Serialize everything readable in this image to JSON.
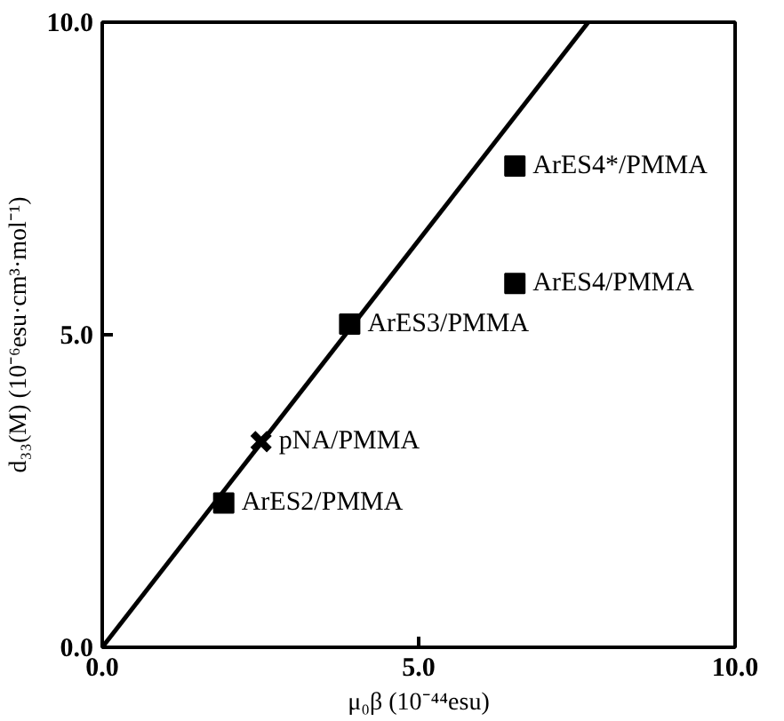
{
  "chart_data": {
    "type": "scatter",
    "xlabel": "μ₀β (10⁻⁴⁴esu)",
    "ylabel": "d₃₃(M) (10⁻⁶esu·cm³·mol⁻¹)",
    "xlim": [
      0,
      10
    ],
    "ylim": [
      0,
      10
    ],
    "xticks": [
      {
        "value": 0,
        "label": "0.0"
      },
      {
        "value": 5,
        "label": "5.0"
      },
      {
        "value": 10,
        "label": "10.0"
      }
    ],
    "yticks": [
      {
        "value": 0,
        "label": "0.0"
      },
      {
        "value": 5,
        "label": "5.0"
      },
      {
        "value": 10,
        "label": "10.0"
      }
    ],
    "grid": false,
    "series": [
      {
        "marker": "square",
        "color": "#000000",
        "x": [
          1.92,
          3.91,
          6.52,
          6.52
        ],
        "values": [
          2.31,
          5.17,
          7.7,
          5.82
        ]
      },
      {
        "marker": "cross",
        "color": "#000000",
        "x": [
          2.51
        ],
        "values": [
          3.29
        ]
      },
      {
        "type": "line",
        "marker": "none",
        "line_style": "solid",
        "color": "#000000",
        "x": [
          0,
          7.68
        ],
        "values": [
          0,
          10
        ]
      }
    ],
    "annotations": [
      {
        "text": "ArES2/PMMA",
        "x": 1.92,
        "y": 2.31
      },
      {
        "text": "pNA/PMMA",
        "x": 2.51,
        "y": 3.29
      },
      {
        "text": "ArES3/PMMA",
        "x": 3.91,
        "y": 5.17
      },
      {
        "text": "ArES4*/PMMA",
        "x": 6.52,
        "y": 7.7
      },
      {
        "text": "ArES4/PMMA",
        "x": 6.52,
        "y": 5.82
      }
    ]
  }
}
